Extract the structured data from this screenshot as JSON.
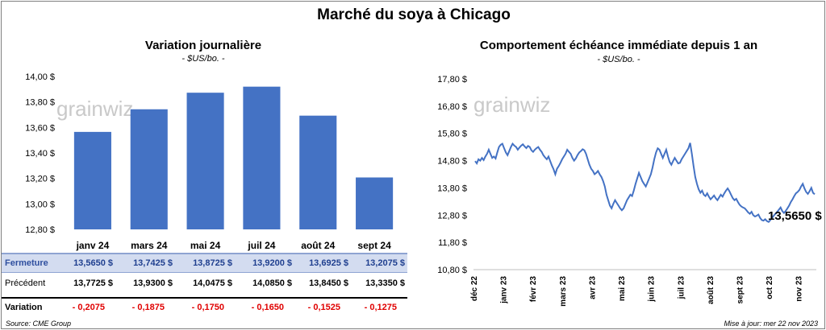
{
  "title": "Marché du soya à Chicago",
  "left_chart": {
    "title": "Variation  journalière",
    "subtitle": "- $US/bo. -"
  },
  "right_chart": {
    "title": "Comportement  échéance immédiate depuis 1 an",
    "subtitle": "- $US/bo. -",
    "last_value_label": "13,5650 $"
  },
  "watermark": "grainwiz",
  "table": {
    "labels": {
      "close": "Fermeture",
      "prev": "Précédent",
      "var": "Variation"
    },
    "close": [
      "13,5650  $",
      "13,7425  $",
      "13,8725  $",
      "13,9200  $",
      "13,6925  $",
      "13,2075  $"
    ],
    "prev": [
      "13,7725  $",
      "13,9300  $",
      "14,0475  $",
      "14,0850  $",
      "13,8450  $",
      "13,3350  $"
    ],
    "var": [
      "- 0,2075",
      "- 0,1875",
      "- 0,1750",
      "- 0,1650",
      "- 0,1525",
      "- 0,1275"
    ]
  },
  "footer": {
    "source": "Source: CME Group",
    "updated": "Mise à jour: mer 22 nov 2023"
  },
  "chart_data": [
    {
      "type": "bar",
      "title": "Variation  journalière",
      "subtitle": "- $US/bo. -",
      "categories": [
        "janv 24",
        "mars 24",
        "mai 24",
        "juil 24",
        "août 24",
        "sept 24"
      ],
      "values": [
        13.565,
        13.7425,
        13.8725,
        13.92,
        13.6925,
        13.2075
      ],
      "ylim": [
        12.8,
        14.0
      ],
      "yticks": [
        12.8,
        13.0,
        13.2,
        13.4,
        13.6,
        13.8,
        14.0
      ],
      "ytick_labels": [
        "12,80 $",
        "13,00 $",
        "13,20 $",
        "13,40 $",
        "13,60 $",
        "13,80 $",
        "14,00 $"
      ],
      "color": "#4472c4",
      "grid": false
    },
    {
      "type": "line",
      "title": "Comportement  échéance immédiate depuis 1 an",
      "subtitle": "- $US/bo. -",
      "ylim": [
        10.8,
        17.8
      ],
      "yticks": [
        10.8,
        11.8,
        12.8,
        13.8,
        14.8,
        15.8,
        16.8,
        17.8
      ],
      "ytick_labels": [
        "10,80 $",
        "11,80 $",
        "12,80 $",
        "13,80 $",
        "14,80 $",
        "15,80 $",
        "16,80 $",
        "17,80 $"
      ],
      "x_labels": [
        "déc 22",
        "janv 23",
        "févr 23",
        "mars 23",
        "avr 23",
        "mai 23",
        "juin 23",
        "juil 23",
        "août 23",
        "sept 23",
        "oct 23",
        "nov 23"
      ],
      "color": "#4472c4",
      "grid": false,
      "series": [
        {
          "values": [
            14.78,
            14.7,
            14.85,
            14.8,
            14.9,
            14.82,
            14.95,
            15.05,
            15.2,
            15.05,
            14.9,
            14.95,
            14.88,
            15.1,
            15.3,
            15.38,
            15.42,
            15.25,
            15.1,
            15.0,
            15.15,
            15.3,
            15.42,
            15.35,
            15.3,
            15.2,
            15.28,
            15.35,
            15.4,
            15.32,
            15.26,
            15.34,
            15.3,
            15.18,
            15.12,
            15.2,
            15.26,
            15.3,
            15.2,
            15.12,
            15.0,
            14.92,
            14.85,
            14.95,
            14.78,
            14.62,
            14.48,
            14.3,
            14.5,
            14.6,
            14.72,
            14.85,
            14.95,
            15.05,
            15.2,
            15.12,
            15.05,
            14.9,
            14.8,
            14.88,
            15.0,
            15.1,
            15.15,
            15.22,
            15.18,
            15.05,
            14.85,
            14.65,
            14.5,
            14.42,
            14.3,
            14.35,
            14.42,
            14.3,
            14.2,
            14.05,
            13.85,
            13.55,
            13.35,
            13.15,
            13.05,
            13.22,
            13.35,
            13.25,
            13.15,
            13.05,
            12.98,
            13.05,
            13.2,
            13.35,
            13.45,
            13.55,
            13.5,
            13.7,
            13.95,
            14.15,
            14.35,
            14.2,
            14.05,
            13.95,
            13.85,
            14.0,
            14.15,
            14.3,
            14.55,
            14.85,
            15.1,
            15.25,
            15.2,
            15.05,
            14.9,
            15.05,
            15.2,
            14.95,
            14.75,
            14.65,
            14.78,
            14.9,
            14.8,
            14.7,
            14.72,
            14.85,
            14.95,
            15.05,
            15.15,
            15.25,
            15.45,
            15.05,
            14.6,
            14.2,
            13.95,
            13.75,
            13.62,
            13.7,
            13.55,
            13.5,
            13.6,
            13.48,
            13.38,
            13.45,
            13.52,
            13.42,
            13.35,
            13.45,
            13.55,
            13.48,
            13.6,
            13.7,
            13.78,
            13.68,
            13.55,
            13.42,
            13.35,
            13.4,
            13.28,
            13.18,
            13.12,
            13.08,
            13.05,
            12.98,
            12.9,
            12.85,
            12.92,
            12.8,
            12.75,
            12.78,
            12.82,
            12.7,
            12.62,
            12.6,
            12.65,
            12.58,
            12.55,
            12.62,
            12.7,
            12.78,
            12.85,
            12.92,
            13.0,
            13.08,
            12.95,
            12.88,
            12.95,
            13.05,
            13.15,
            13.28,
            13.38,
            13.5,
            13.6,
            13.65,
            13.72,
            13.85,
            13.95,
            13.78,
            13.65,
            13.58,
            13.68,
            13.8,
            13.62,
            13.565
          ]
        }
      ]
    }
  ]
}
